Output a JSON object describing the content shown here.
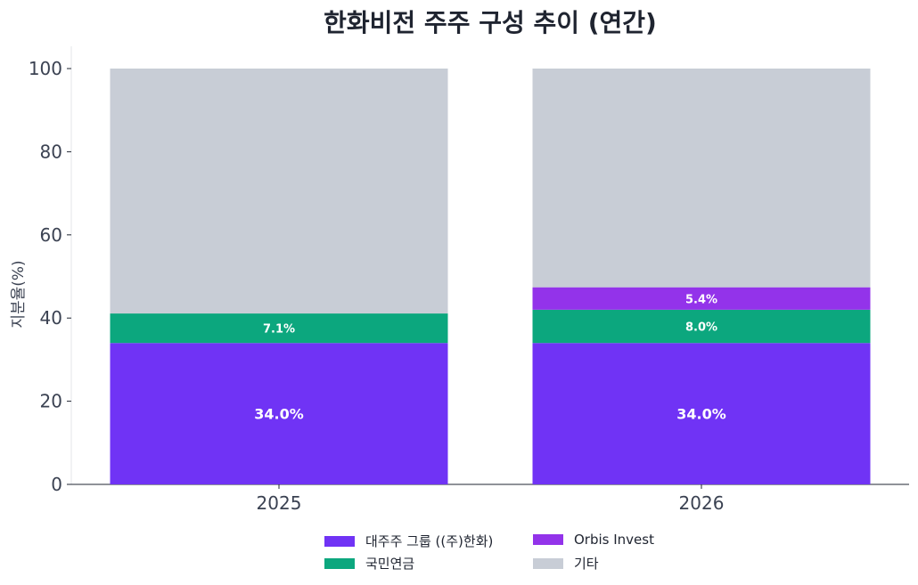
{
  "chart_data": {
    "type": "bar",
    "stacked": true,
    "title": "한화비전 주주 구성 추이 (연간)",
    "ylabel": "지분율(%)",
    "xlabel": "",
    "ylim": [
      0,
      100
    ],
    "yticks": [
      0,
      20,
      40,
      60,
      80,
      100
    ],
    "categories": [
      "2025",
      "2026"
    ],
    "legend_position": "bottom",
    "series": [
      {
        "name": "대주주 그룹 ((주)한화)",
        "color": "#7033f5",
        "values": [
          34.0,
          34.0
        ],
        "labels": [
          "34.0%",
          "34.0%"
        ]
      },
      {
        "name": "국민연금",
        "color": "#0ca77e",
        "values": [
          7.1,
          8.0
        ],
        "labels": [
          "7.1%",
          "8.0%"
        ]
      },
      {
        "name": "Orbis Invest",
        "color": "#9333ea",
        "values": [
          0,
          5.4
        ],
        "labels": [
          "",
          "5.4%"
        ]
      },
      {
        "name": "기타",
        "color": "#c8cdd6",
        "values": [
          58.9,
          52.6
        ],
        "labels": [
          "",
          ""
        ]
      }
    ]
  }
}
